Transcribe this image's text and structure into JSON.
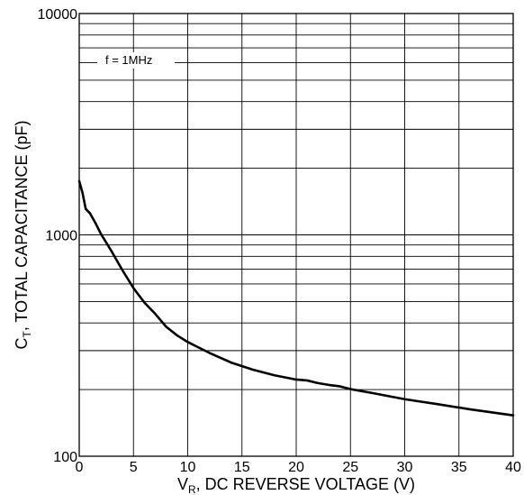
{
  "chart_data": {
    "type": "line",
    "x_scale": "linear",
    "y_scale": "log",
    "xlim": [
      0,
      40
    ],
    "ylim": [
      100,
      10000
    ],
    "x_ticks": [
      "0",
      "5",
      "10",
      "15",
      "20",
      "25",
      "30",
      "35",
      "40"
    ],
    "y_ticks": [
      "100",
      "1000",
      "10000"
    ],
    "xlabel": {
      "pre": "V",
      "sub": "R",
      "post": ", DC REVERSE VOLTAGE (V)"
    },
    "ylabel": {
      "pre": "C",
      "sub": "T",
      "post": ",  TOTAL CAPACITANCE (pF)"
    },
    "annotation": "f = 1MHz",
    "grid": true,
    "series": [
      {
        "color": "#000000",
        "x": [
          0,
          0.3,
          0.6,
          1,
          1.5,
          2,
          3,
          4,
          5,
          6,
          7,
          8,
          9,
          10,
          11,
          12,
          14,
          16,
          18,
          20,
          21,
          22,
          23,
          24,
          25,
          27,
          30,
          33,
          36,
          40
        ],
        "y": [
          1750,
          1550,
          1310,
          1250,
          1130,
          1010,
          840,
          690,
          575,
          495,
          440,
          385,
          352,
          328,
          310,
          293,
          265,
          246,
          232,
          222,
          220,
          214,
          210,
          207,
          201,
          193,
          181,
          172,
          163,
          153
        ]
      }
    ]
  }
}
